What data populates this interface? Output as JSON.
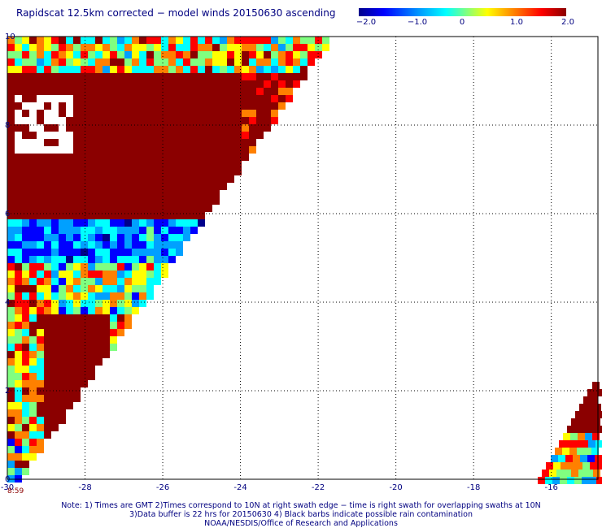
{
  "title": "Rapidscat 12.5km corrected − model winds 20150630 ascending",
  "colorbar": {
    "ticks": [
      "−2.0",
      "−1.0",
      "0",
      "1.0",
      "2.0"
    ],
    "range": [
      -2.0,
      2.0
    ]
  },
  "axes": {
    "x_ticks": [
      "-30",
      "-28",
      "-26",
      "-24",
      "-22",
      "-20",
      "-18",
      "-16"
    ],
    "y_ticks": [
      "0",
      "2",
      "4",
      "6",
      "8",
      "10"
    ],
    "lon_range": [
      -30,
      -14.8
    ],
    "lat_range": [
      0,
      10
    ]
  },
  "time_label": "8:59",
  "notes": [
    "Note: 1) Times are GMT 2)Times correspond to 10N at right swath edge − time is right swath for overlapping swaths at 10N",
    "3)Data buffer is 22 hrs for 20150630 4) Black barbs indicate possible rain contamination",
    "NOAA/NESDIS/Office of Research and Applications"
  ],
  "colors": {
    "scale": [
      "#00008b",
      "#0000ff",
      "#00a0ff",
      "#00ffff",
      "#80ff80",
      "#ffff00",
      "#ff8000",
      "#ff0000",
      "#8b0000"
    ]
  }
}
